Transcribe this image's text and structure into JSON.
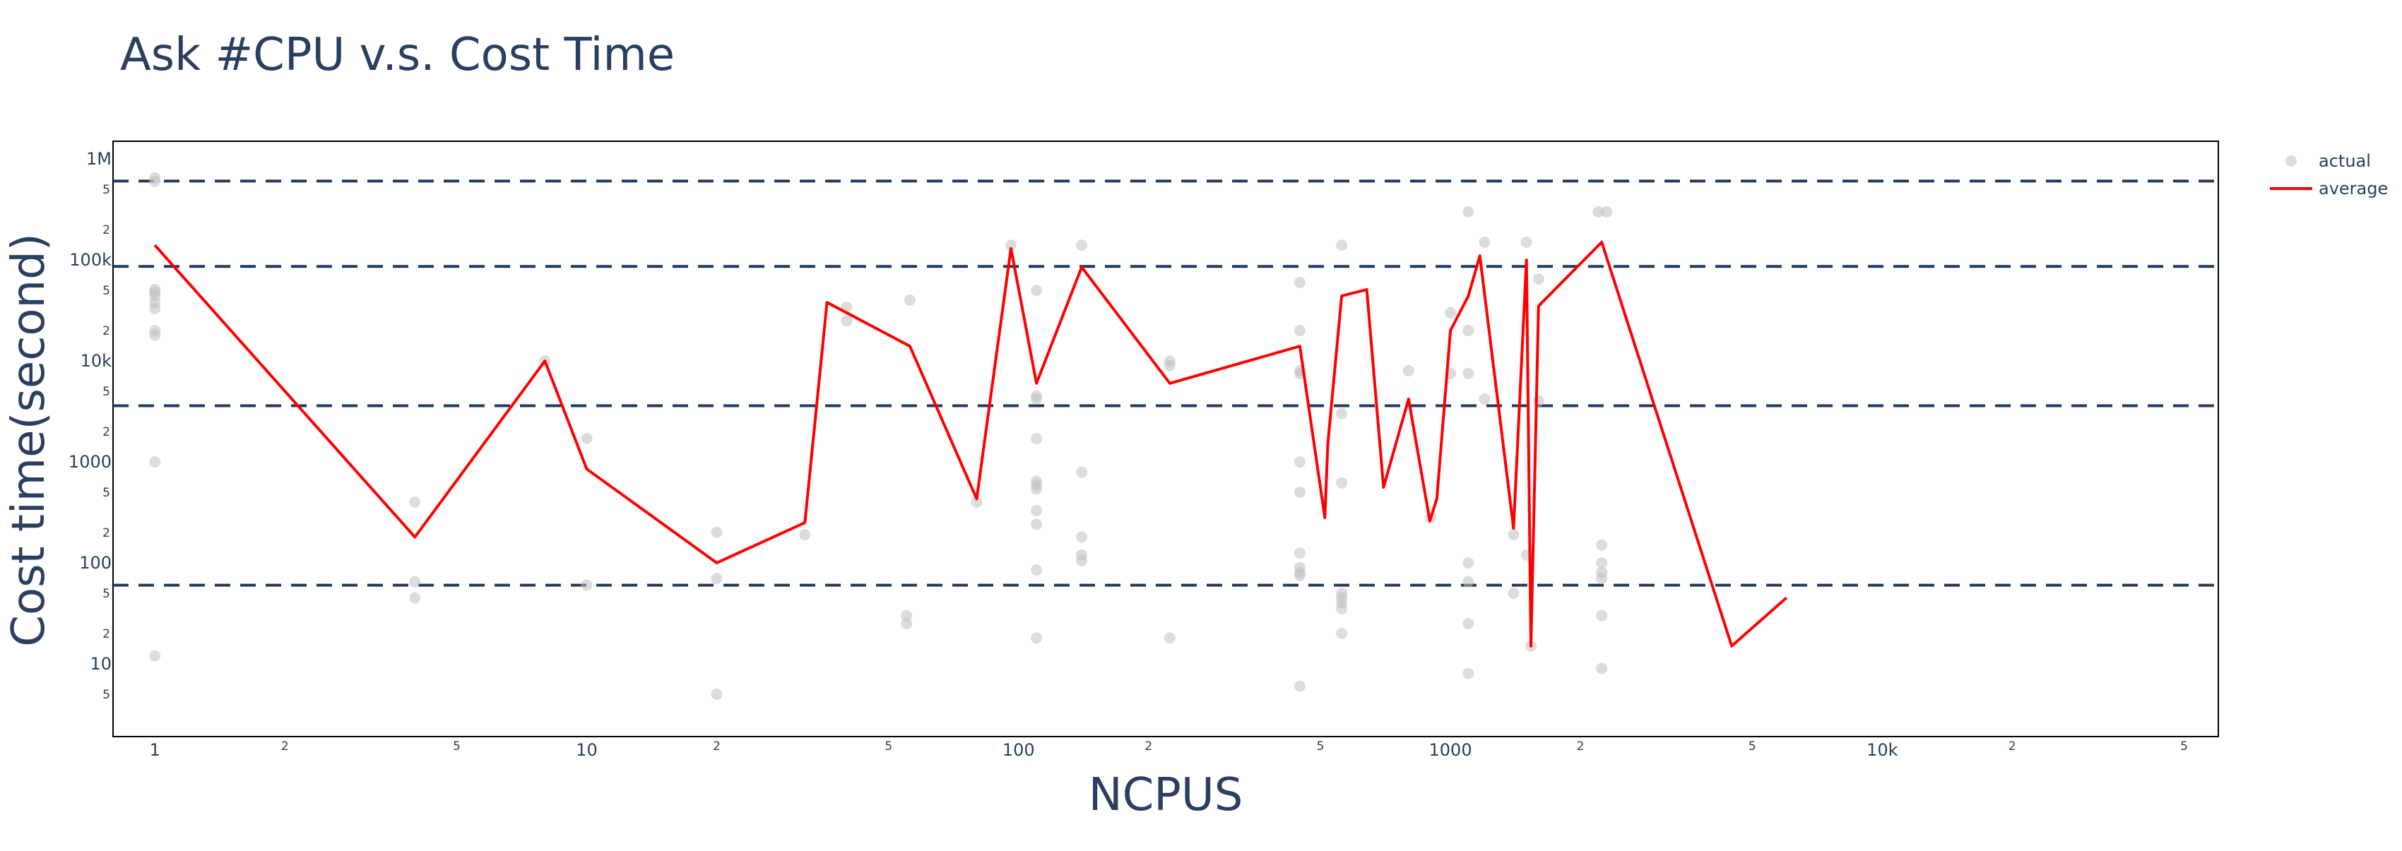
{
  "chart_data": {
    "type": "scatter",
    "title": "Ask #CPU v.s. Cost Time",
    "xlabel": "NCPUS",
    "ylabel": "Cost time(second)",
    "x_scale": "log",
    "y_scale": "log",
    "xlim": [
      0.8,
      60000
    ],
    "ylim": [
      1.9,
      1500000
    ],
    "x_major_ticks": [
      {
        "value": 1,
        "label": "1"
      },
      {
        "value": 10,
        "label": "10"
      },
      {
        "value": 100,
        "label": "100"
      },
      {
        "value": 1000,
        "label": "1000"
      },
      {
        "value": 10000,
        "label": "10k"
      }
    ],
    "x_minor_ticks": [
      {
        "value": 2,
        "label": "2"
      },
      {
        "value": 5,
        "label": "5"
      },
      {
        "value": 20,
        "label": "2"
      },
      {
        "value": 50,
        "label": "5"
      },
      {
        "value": 200,
        "label": "2"
      },
      {
        "value": 500,
        "label": "5"
      },
      {
        "value": 2000,
        "label": "2"
      },
      {
        "value": 5000,
        "label": "5"
      },
      {
        "value": 20000,
        "label": "2"
      },
      {
        "value": 50000,
        "label": "5"
      }
    ],
    "y_major_ticks": [
      {
        "value": 10,
        "label": "10"
      },
      {
        "value": 100,
        "label": "100"
      },
      {
        "value": 1000,
        "label": "1000"
      },
      {
        "value": 10000,
        "label": "10k"
      },
      {
        "value": 100000,
        "label": "100k"
      },
      {
        "value": 1000000,
        "label": "1M"
      }
    ],
    "y_minor_ticks": [
      {
        "value": 5,
        "label": "5"
      },
      {
        "value": 20,
        "label": "2"
      },
      {
        "value": 50,
        "label": "5"
      },
      {
        "value": 200,
        "label": "2"
      },
      {
        "value": 500,
        "label": "5"
      },
      {
        "value": 2000,
        "label": "2"
      },
      {
        "value": 5000,
        "label": "5"
      },
      {
        "value": 20000,
        "label": "2"
      },
      {
        "value": 50000,
        "label": "5"
      },
      {
        "value": 200000,
        "label": "2"
      },
      {
        "value": 500000,
        "label": "5"
      }
    ],
    "reference_lines_y": [
      60,
      3600,
      86400,
      604800
    ],
    "reference_line_color": "#1f3a60",
    "grid": false,
    "legend_position": "top-right",
    "series": [
      {
        "name": "actual",
        "mode": "markers",
        "color": "#bfbfbf",
        "points": [
          [
            1,
            650000
          ],
          [
            1,
            600000
          ],
          [
            1,
            51000
          ],
          [
            1,
            48000
          ],
          [
            1,
            44000
          ],
          [
            1,
            38000
          ],
          [
            1,
            33000
          ],
          [
            1,
            20000
          ],
          [
            1,
            18000
          ],
          [
            1,
            1000
          ],
          [
            1,
            12
          ],
          [
            4,
            400
          ],
          [
            4,
            65
          ],
          [
            4,
            45
          ],
          [
            8,
            10000
          ],
          [
            10,
            1700
          ],
          [
            10,
            60
          ],
          [
            20,
            200
          ],
          [
            20,
            70
          ],
          [
            20,
            5
          ],
          [
            32,
            190
          ],
          [
            40,
            34000
          ],
          [
            40,
            25000
          ],
          [
            55,
            30
          ],
          [
            55,
            25
          ],
          [
            56,
            40000
          ],
          [
            80,
            400
          ],
          [
            96,
            140000
          ],
          [
            110,
            50000
          ],
          [
            110,
            4500
          ],
          [
            110,
            4200
          ],
          [
            110,
            1700
          ],
          [
            110,
            640
          ],
          [
            110,
            590
          ],
          [
            110,
            540
          ],
          [
            110,
            330
          ],
          [
            110,
            240
          ],
          [
            110,
            85
          ],
          [
            110,
            18
          ],
          [
            140,
            140000
          ],
          [
            140,
            790
          ],
          [
            140,
            180
          ],
          [
            140,
            120
          ],
          [
            140,
            105
          ],
          [
            224,
            10000
          ],
          [
            224,
            9000
          ],
          [
            224,
            18
          ],
          [
            448,
            60000
          ],
          [
            448,
            20000
          ],
          [
            448,
            8000
          ],
          [
            448,
            7500
          ],
          [
            448,
            1000
          ],
          [
            448,
            500
          ],
          [
            448,
            125
          ],
          [
            448,
            90
          ],
          [
            448,
            80
          ],
          [
            448,
            75
          ],
          [
            448,
            6
          ],
          [
            560,
            140000
          ],
          [
            560,
            3000
          ],
          [
            560,
            620
          ],
          [
            560,
            50
          ],
          [
            560,
            45
          ],
          [
            560,
            40
          ],
          [
            560,
            35
          ],
          [
            560,
            20
          ],
          [
            800,
            8000
          ],
          [
            900,
            280
          ],
          [
            1000,
            30000
          ],
          [
            1000,
            7500
          ],
          [
            1100,
            300000
          ],
          [
            1100,
            20000
          ],
          [
            1100,
            7500
          ],
          [
            1100,
            100
          ],
          [
            1100,
            65
          ],
          [
            1100,
            25
          ],
          [
            1100,
            8
          ],
          [
            1200,
            150000
          ],
          [
            1200,
            4200
          ],
          [
            1400,
            190
          ],
          [
            1400,
            50
          ],
          [
            1500,
            150000
          ],
          [
            1500,
            120
          ],
          [
            1536,
            15
          ],
          [
            1600,
            4000
          ],
          [
            1600,
            65000
          ],
          [
            2200,
            300000
          ],
          [
            2300,
            300000
          ],
          [
            2240,
            150
          ],
          [
            2240,
            100
          ],
          [
            2240,
            80
          ],
          [
            2240,
            70
          ],
          [
            2240,
            30
          ],
          [
            2240,
            9
          ]
        ]
      },
      {
        "name": "average",
        "mode": "lines",
        "color": "#ff0000",
        "points": [
          [
            1,
            140000
          ],
          [
            4,
            180
          ],
          [
            8,
            10000
          ],
          [
            10,
            850
          ],
          [
            20,
            100
          ],
          [
            32,
            250
          ],
          [
            36,
            38000
          ],
          [
            56,
            14000
          ],
          [
            80,
            430
          ],
          [
            96,
            130000
          ],
          [
            110,
            6000
          ],
          [
            140,
            85000
          ],
          [
            224,
            6000
          ],
          [
            448,
            14000
          ],
          [
            512,
            280
          ],
          [
            520,
            1500
          ],
          [
            560,
            44000
          ],
          [
            640,
            51000
          ],
          [
            700,
            560
          ],
          [
            800,
            4200
          ],
          [
            896,
            260
          ],
          [
            930,
            430
          ],
          [
            1000,
            20000
          ],
          [
            1100,
            44000
          ],
          [
            1170,
            110000
          ],
          [
            1400,
            220
          ],
          [
            1500,
            100000
          ],
          [
            1536,
            15
          ],
          [
            1600,
            35000
          ],
          [
            2240,
            150000
          ],
          [
            4480,
            15
          ],
          [
            6000,
            45
          ]
        ]
      }
    ]
  }
}
